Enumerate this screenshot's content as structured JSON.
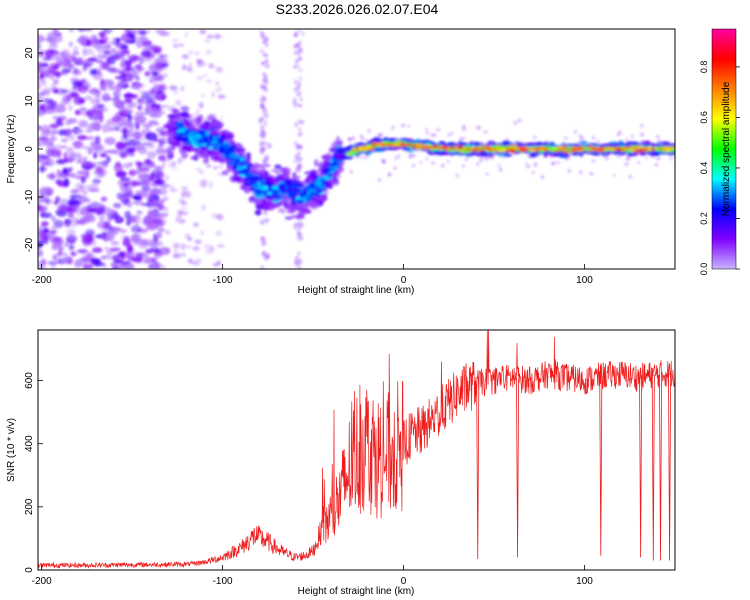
{
  "title": "S233.2026.026.02.07.E04",
  "chart_data": [
    {
      "type": "heatmap",
      "title": "S233.2026.026.02.07.E04",
      "xlabel": "Height of straight line (km)",
      "ylabel": "Frequency (Hz)",
      "xlim": [
        -202,
        150
      ],
      "ylim": [
        -25,
        25
      ],
      "xticks": [
        "-200",
        "-100",
        "0",
        "100"
      ],
      "xtick_values": [
        -200,
        -100,
        0,
        100
      ],
      "yticks": [
        "-20",
        "-10",
        "0",
        "10",
        "20"
      ],
      "ytick_values": [
        -20,
        -10,
        0,
        10,
        20
      ],
      "colorbar": {
        "label": "Normalized spectral amplitude",
        "range": [
          0,
          0.95
        ],
        "ticks": [
          "0.0",
          "0.2",
          "0.4",
          "0.6",
          "0.8"
        ],
        "tick_values": [
          0.0,
          0.2,
          0.4,
          0.6,
          0.8
        ],
        "colors": [
          "#c8b4ff",
          "#8000ff",
          "#0000ff",
          "#00ffff",
          "#00ff00",
          "#ffff00",
          "#ff8000",
          "#ff0000",
          "#ff00a0"
        ]
      },
      "ridge": {
        "description": "frequency centroid of the main spectral ridge versus height",
        "x": [
          -125,
          -115,
          -105,
          -95,
          -88,
          -80,
          -72,
          -65,
          -58,
          -52,
          -45,
          -40,
          -35,
          -30,
          -25,
          -20,
          -15,
          -10,
          -5,
          0,
          10,
          25,
          50,
          75,
          100,
          125,
          150
        ],
        "y": [
          4,
          2,
          2,
          -1,
          -4,
          -8,
          -9,
          -8,
          -10,
          -9,
          -7,
          -4,
          -1,
          -1,
          0,
          0,
          1,
          1,
          1,
          1,
          0.5,
          0,
          0,
          0,
          0,
          0,
          0
        ]
      }
    },
    {
      "type": "line",
      "xlabel": "Height of straight line (km)",
      "ylabel": "SNR (10 * v/v)",
      "xlim": [
        -202,
        150
      ],
      "ylim": [
        0,
        760
      ],
      "xticks": [
        "-200",
        "-100",
        "0",
        "100"
      ],
      "xtick_values": [
        -200,
        -100,
        0,
        100
      ],
      "yticks": [
        "0",
        "200",
        "400",
        "600"
      ],
      "ytick_values": [
        0,
        200,
        400,
        600
      ],
      "series": [
        {
          "name": "SNR",
          "color": "#ff0000",
          "x": [
            -200,
            -180,
            -160,
            -140,
            -120,
            -110,
            -100,
            -90,
            -82,
            -75,
            -68,
            -60,
            -55,
            -50,
            -45,
            -40,
            -35,
            -30,
            -25,
            -20,
            -15,
            -10,
            -5,
            0,
            5,
            10,
            20,
            30,
            40,
            50,
            60,
            70,
            80,
            90,
            100,
            110,
            120,
            130,
            140,
            150
          ],
          "y": [
            15,
            15,
            16,
            17,
            18,
            25,
            40,
            70,
            110,
            90,
            60,
            40,
            45,
            60,
            130,
            170,
            230,
            320,
            380,
            400,
            360,
            360,
            380,
            400,
            430,
            440,
            500,
            560,
            590,
            600,
            610,
            600,
            620,
            610,
            600,
            615,
            620,
            610,
            620,
            625
          ]
        }
      ],
      "dropouts": {
        "x": [
          41,
          63,
          109,
          131,
          138,
          142,
          147
        ],
        "y": [
          35,
          40,
          45,
          40,
          30,
          30,
          30
        ]
      }
    }
  ]
}
